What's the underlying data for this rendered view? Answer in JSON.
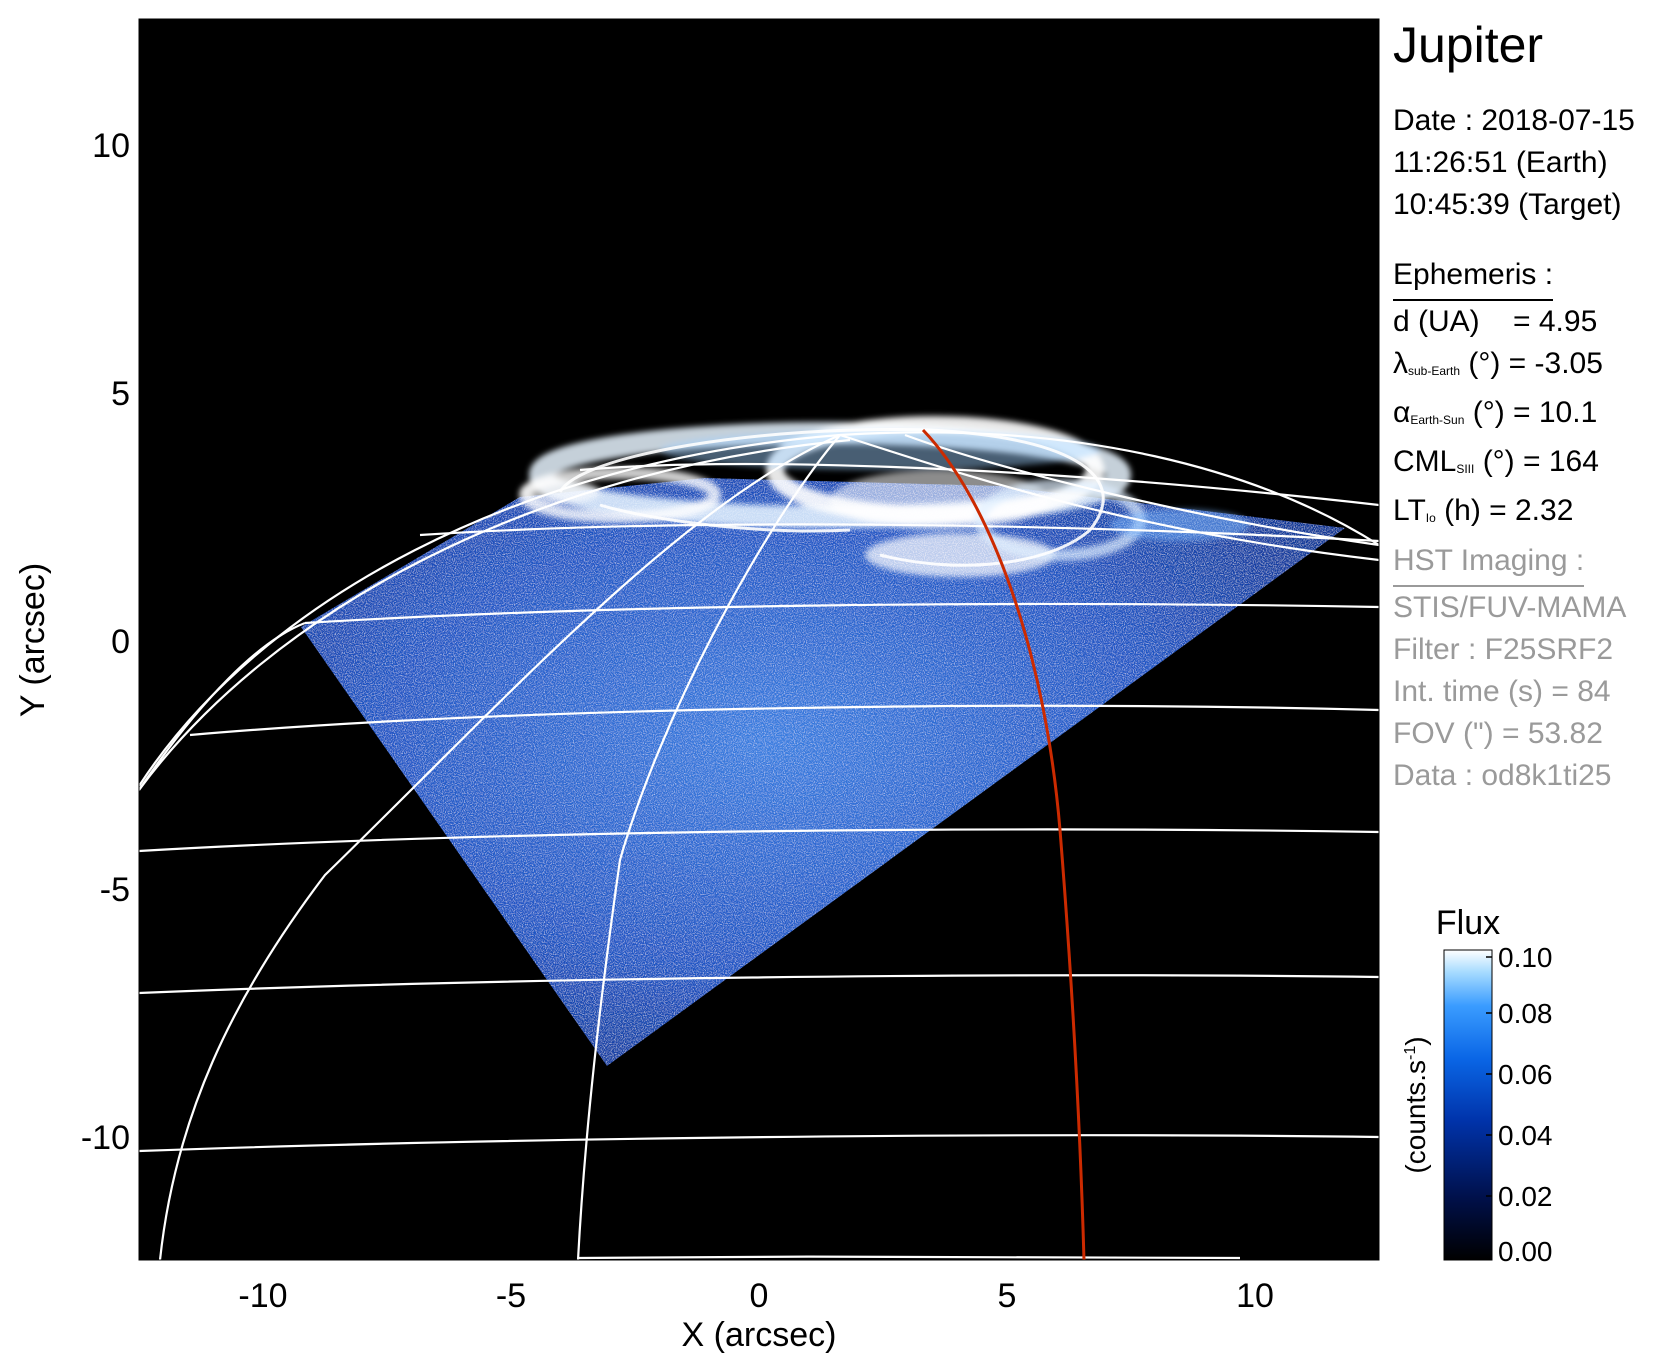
{
  "image": {
    "xlabel": "X (arcsec)",
    "ylabel": "Y (arcsec)",
    "x_ticks": [
      "-10",
      "-5",
      "0",
      "5",
      "10"
    ],
    "y_ticks": [
      "10",
      "5",
      "0",
      "-5",
      "-10"
    ],
    "x_range": [
      -12.5,
      12.5
    ],
    "y_range": [
      -12.3,
      12.7
    ],
    "background_color": "#000000",
    "grid_color": "#ffffff",
    "meridian_color": "#cc2a00",
    "flux_colors": [
      "#000000",
      "#001a66",
      "#0040cc",
      "#1f7fff",
      "#8fd0ff",
      "#ffffff"
    ]
  },
  "info": {
    "target": "Jupiter",
    "date_line": "Date : 2018-07-15",
    "time_earth": "11:26:51 (Earth)",
    "time_target": "10:45:39 (Target)",
    "ephemeris_header": "Ephemeris :",
    "distance": "d (UA)    = 4.95",
    "lambda_symbol": "λ",
    "lambda_sub": "sub-Earth",
    "lambda_rest": " (°) = -3.05",
    "alpha_symbol": "α",
    "alpha_sub": "Earth-Sun",
    "alpha_rest": " (°) = 10.1",
    "cml_symbol": "CML",
    "cml_sub": "SIII",
    "cml_rest": " (°) = 164",
    "lt_symbol": "LT",
    "lt_sub": "Io",
    "lt_rest": " (h) = 2.32",
    "hst_header": "HST Imaging :",
    "instrument": "STIS/FUV-MAMA",
    "filter": "Filter : F25SRF2",
    "int_time": "Int. time (s) = 84",
    "fov": "FOV (\") = 53.82",
    "data_id": "Data : od8k1ti25"
  },
  "colorbar": {
    "title": "Flux",
    "label": "(counts.s",
    "label_sup": "-1",
    "label_end": ")",
    "ticks": [
      "0.10",
      "0.08",
      "0.06",
      "0.04",
      "0.02",
      "0.00"
    ],
    "range": [
      0.0,
      0.1
    ]
  }
}
